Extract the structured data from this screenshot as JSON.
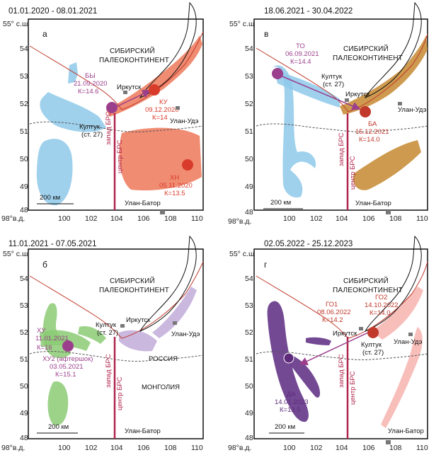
{
  "figure": {
    "panels": [
      {
        "id": "a",
        "date_range": "01.01.2020 - 08.01.2021",
        "letter": "а",
        "lat_top": "55° с.ш.",
        "lat_ticks": [
          "54",
          "53",
          "52",
          "51",
          "50",
          "49",
          "48"
        ],
        "lon_first": "98°в.д.",
        "lon_ticks": [
          "100",
          "102",
          "104",
          "106",
          "108",
          "110"
        ],
        "continent_line1": "СИБИРСКИЙ",
        "continent_line2": "ПАЛЕОКОНТИНЕНТ",
        "cities": {
          "irkutsk": "Иркутск",
          "ulan_ude": "Улан-Удэ",
          "kultuk_line1": "Култук",
          "kultuk_line2": "(ст. 27)",
          "ulan_bator": "Улан-Батор"
        },
        "brs_west": "запад БРС",
        "brs_center": "центр БРС",
        "scale": "200 км",
        "events": [
          {
            "lines": [
              "БЫ",
              "21.09.2020",
              "К=14.6"
            ],
            "color": "#9b3f8c"
          },
          {
            "lines": [
              "КУ",
              "09.12.2020",
              "К=14"
            ],
            "color": "#d93b2b"
          },
          {
            "lines": [
              "ХН",
              "05.11.2020",
              "К=13.5"
            ],
            "color": "#d93b2b"
          }
        ]
      },
      {
        "id": "v",
        "date_range": "18.06.2021 - 30.04.2022",
        "letter": "в",
        "lat_top": "55° с.ш.",
        "lat_ticks": [
          "54",
          "53",
          "52",
          "51",
          "50",
          "49",
          "48"
        ],
        "lon_first": "98°в.д.",
        "lon_ticks": [
          "100",
          "102",
          "104",
          "106",
          "108",
          "110"
        ],
        "continent_line1": "СИБИРСКИЙ",
        "continent_line2": "ПАЛЕОКОНТИНЕНТ",
        "cities": {
          "irkutsk": "Иркутск",
          "ulan_ude": "Улан-Удэ",
          "kultuk_line1": "Култук",
          "kultuk_line2": "(ст. 27)",
          "ulan_bator": "Улан-Батор"
        },
        "brs_west": "запад БРС",
        "brs_center": "центр БРС",
        "scale": "200 км",
        "events": [
          {
            "lines": [
              "ТО",
              "06.09.2021",
              "К=14.4"
            ],
            "color": "#9b3f8c"
          },
          {
            "lines": [
              "БА",
              "15.12.2021",
              "К=14.0"
            ],
            "color": "#c0392b"
          }
        ]
      },
      {
        "id": "b",
        "date_range": "11.01.2021 - 07.05.2021",
        "letter": "б",
        "lat_top": "55° с.ш.",
        "lat_ticks": [
          "54",
          "53",
          "52",
          "51",
          "50",
          "49",
          "48"
        ],
        "lon_first": "98°в.д.",
        "lon_ticks": [
          "100",
          "102",
          "104",
          "106",
          "108",
          "110"
        ],
        "continent_line1": "СИБИРСКИЙ",
        "continent_line2": "ПАЛЕОКОНТИНЕНТ",
        "cities": {
          "irkutsk": "Иркутск",
          "ulan_ude": "Улан-Удэ",
          "kultuk_line1": "Култук",
          "kultuk_line2": "(ст. 27)",
          "ulan_bator": "Улан-Батор"
        },
        "countries": {
          "russia": "РОССИЯ",
          "mongolia": "МОНГОЛИЯ"
        },
        "brs_west": "запад БРС",
        "brs_center": "центр БРС",
        "scale": "200 км",
        "events": [
          {
            "lines": [
              "ХУ",
              "11.01.2021",
              "К=16"
            ],
            "color": "#9b3f8c"
          },
          {
            "lines": [
              "ХУ2 (афтершок)",
              "03.05.2021",
              "К=15.1"
            ],
            "color": "#9b3f8c"
          }
        ]
      },
      {
        "id": "g",
        "date_range": "02.05.2022 - 25.12.2023",
        "letter": "г",
        "lat_top": "55° с.ш.",
        "lat_ticks": [
          "54",
          "53",
          "52",
          "51",
          "50",
          "49",
          "48"
        ],
        "lon_first": "98°в.д.",
        "lon_ticks": [
          "100",
          "102",
          "104",
          "106",
          "108",
          "110"
        ],
        "continent_line1": "СИБИРСКИЙ",
        "continent_line2": "ПАЛЕОКОНТИНЕНТ",
        "cities": {
          "irkutsk": "Иркутск",
          "ulan_ude": "Улан-Удэ",
          "kultuk_line1": "Култук",
          "kultuk_line2": "(ст. 27)",
          "ulan_bator": "Улан-Батор"
        },
        "brs_west": "запад БРС",
        "brs_center": "центр БРС",
        "scale": "200 км",
        "events": [
          {
            "lines": [
              "ГО1",
              "08.06.2022",
              "К=14.2"
            ],
            "color": "#c0392b"
          },
          {
            "lines": [
              "ГО2",
              "14.10.2022",
              "К=14.0"
            ],
            "color": "#c0392b"
          },
          {
            "lines": [
              "ДА",
              "14.01.2023",
              "К=13.5"
            ],
            "color": "#5e2b7a"
          }
        ]
      }
    ],
    "colors": {
      "brs_line": "#b0234b",
      "suture": "#c0392b",
      "blue_zone": "#8ec9ea",
      "red_zone": "#ee7f63",
      "brown_zone": "#c98f3c",
      "green_zone": "#8ccb74",
      "lilac_zone": "#c4b0dc",
      "purple_zone": "#6b3f8e",
      "pink_zone": "#f6b7b2"
    }
  }
}
